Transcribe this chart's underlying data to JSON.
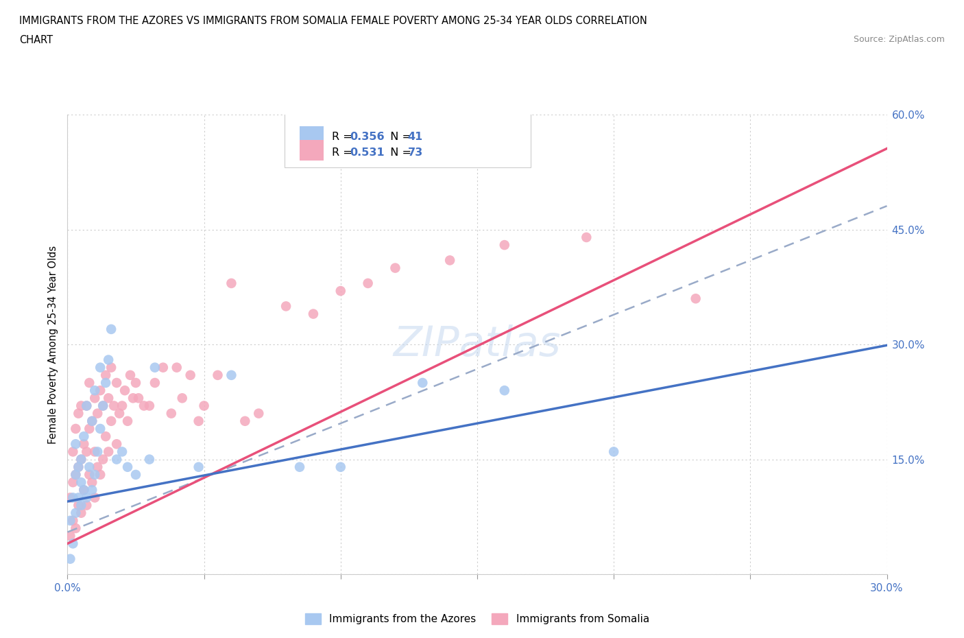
{
  "title_line1": "IMMIGRANTS FROM THE AZORES VS IMMIGRANTS FROM SOMALIA FEMALE POVERTY AMONG 25-34 YEAR OLDS CORRELATION",
  "title_line2": "CHART",
  "source": "Source: ZipAtlas.com",
  "ylabel": "Female Poverty Among 25-34 Year Olds",
  "xlim": [
    0.0,
    0.3
  ],
  "ylim": [
    0.0,
    0.6
  ],
  "azores_color": "#a8c8f0",
  "somalia_color": "#f4a8bc",
  "azores_R": 0.356,
  "azores_N": 41,
  "somalia_R": 0.531,
  "somalia_N": 73,
  "trend_color_blue": "#4472c4",
  "trend_color_pink": "#e8507a",
  "trend_dashed_color": "#99aac8",
  "watermark": "ZIPatlas",
  "azores_intercept": 0.095,
  "azores_slope": 0.68,
  "somalia_intercept": 0.04,
  "somalia_slope": 1.72,
  "dashed_intercept": 0.055,
  "dashed_slope": 1.42,
  "azores_x": [
    0.001,
    0.001,
    0.002,
    0.002,
    0.003,
    0.003,
    0.003,
    0.004,
    0.004,
    0.005,
    0.005,
    0.005,
    0.006,
    0.006,
    0.007,
    0.007,
    0.008,
    0.009,
    0.009,
    0.01,
    0.01,
    0.011,
    0.012,
    0.012,
    0.013,
    0.014,
    0.015,
    0.016,
    0.018,
    0.02,
    0.022,
    0.025,
    0.03,
    0.032,
    0.048,
    0.06,
    0.085,
    0.1,
    0.13,
    0.16,
    0.2
  ],
  "azores_y": [
    0.02,
    0.07,
    0.04,
    0.1,
    0.08,
    0.13,
    0.17,
    0.1,
    0.14,
    0.09,
    0.12,
    0.15,
    0.11,
    0.18,
    0.1,
    0.22,
    0.14,
    0.11,
    0.2,
    0.13,
    0.24,
    0.16,
    0.19,
    0.27,
    0.22,
    0.25,
    0.28,
    0.32,
    0.15,
    0.16,
    0.14,
    0.13,
    0.15,
    0.27,
    0.14,
    0.26,
    0.14,
    0.14,
    0.25,
    0.24,
    0.16
  ],
  "somalia_x": [
    0.001,
    0.001,
    0.002,
    0.002,
    0.002,
    0.003,
    0.003,
    0.003,
    0.004,
    0.004,
    0.004,
    0.005,
    0.005,
    0.005,
    0.006,
    0.006,
    0.007,
    0.007,
    0.007,
    0.008,
    0.008,
    0.008,
    0.009,
    0.009,
    0.01,
    0.01,
    0.01,
    0.011,
    0.011,
    0.012,
    0.012,
    0.013,
    0.013,
    0.014,
    0.014,
    0.015,
    0.015,
    0.016,
    0.016,
    0.017,
    0.018,
    0.018,
    0.019,
    0.02,
    0.021,
    0.022,
    0.023,
    0.024,
    0.025,
    0.026,
    0.028,
    0.03,
    0.032,
    0.035,
    0.038,
    0.04,
    0.042,
    0.045,
    0.048,
    0.05,
    0.055,
    0.06,
    0.065,
    0.07,
    0.08,
    0.09,
    0.1,
    0.11,
    0.12,
    0.14,
    0.16,
    0.19,
    0.23
  ],
  "somalia_y": [
    0.05,
    0.1,
    0.07,
    0.12,
    0.16,
    0.06,
    0.13,
    0.19,
    0.09,
    0.14,
    0.21,
    0.08,
    0.15,
    0.22,
    0.11,
    0.17,
    0.09,
    0.16,
    0.22,
    0.13,
    0.19,
    0.25,
    0.12,
    0.2,
    0.1,
    0.16,
    0.23,
    0.14,
    0.21,
    0.13,
    0.24,
    0.15,
    0.22,
    0.18,
    0.26,
    0.16,
    0.23,
    0.2,
    0.27,
    0.22,
    0.17,
    0.25,
    0.21,
    0.22,
    0.24,
    0.2,
    0.26,
    0.23,
    0.25,
    0.23,
    0.22,
    0.22,
    0.25,
    0.27,
    0.21,
    0.27,
    0.23,
    0.26,
    0.2,
    0.22,
    0.26,
    0.38,
    0.2,
    0.21,
    0.35,
    0.34,
    0.37,
    0.38,
    0.4,
    0.41,
    0.43,
    0.44,
    0.36
  ]
}
